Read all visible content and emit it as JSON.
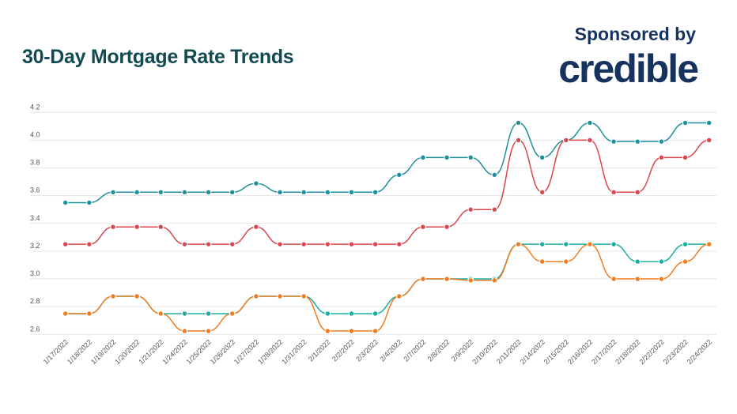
{
  "header": {
    "title": "30-Day Mortgage Rate Trends",
    "sponsor_label": "Sponsored by",
    "logo_text": "credible"
  },
  "chart_data": {
    "type": "line",
    "title": "30-Day Mortgage Rate Trends",
    "xlabel": "",
    "ylabel": "",
    "ylim": [
      2.6,
      4.2
    ],
    "yticks": [
      "2.6",
      "2.8",
      "3.0",
      "3.2",
      "3.4",
      "3.6",
      "3.8",
      "4.0",
      "4.2"
    ],
    "grid": true,
    "categories": [
      "1/17/2022",
      "1/18/2022",
      "1/19/2022",
      "1/20/2022",
      "1/21/2022",
      "1/24/2022",
      "1/25/2022",
      "1/26/2022",
      "1/27/2022",
      "1/28/2022",
      "1/31/2022",
      "2/1/2022",
      "2/2/2022",
      "2/3/2022",
      "2/4/2022",
      "2/7/2022",
      "2/8/2022",
      "2/9/2022",
      "2/10/2022",
      "2/11/2022",
      "2/14/2022",
      "2/15/2022",
      "2/16/2022",
      "2/17/2022",
      "2/18/2022",
      "2/22/2022",
      "2/23/2022",
      "2/24/2022"
    ],
    "series": [
      {
        "color": "#1f8f9c",
        "values": [
          3.55,
          3.55,
          3.625,
          3.625,
          3.625,
          3.625,
          3.625,
          3.625,
          3.688,
          3.625,
          3.625,
          3.625,
          3.625,
          3.625,
          3.75,
          3.875,
          3.875,
          3.875,
          3.75,
          4.125,
          3.875,
          4.0,
          4.125,
          3.99,
          3.99,
          3.99,
          4.125,
          4.125
        ]
      },
      {
        "color": "#d9464e",
        "values": [
          3.25,
          3.25,
          3.375,
          3.375,
          3.375,
          3.25,
          3.25,
          3.25,
          3.375,
          3.25,
          3.25,
          3.25,
          3.25,
          3.25,
          3.25,
          3.375,
          3.375,
          3.5,
          3.5,
          4.0,
          3.625,
          4.0,
          4.0,
          3.625,
          3.625,
          3.875,
          3.875,
          4.0
        ]
      },
      {
        "color": "#1aae9f",
        "values": [
          2.75,
          2.75,
          2.875,
          2.875,
          2.75,
          2.75,
          2.75,
          2.75,
          2.875,
          2.875,
          2.875,
          2.75,
          2.75,
          2.75,
          2.875,
          3.0,
          3.0,
          3.0,
          3.0,
          3.25,
          3.25,
          3.25,
          3.25,
          3.25,
          3.125,
          3.125,
          3.25,
          3.25
        ]
      },
      {
        "color": "#f07c22",
        "values": [
          2.75,
          2.75,
          2.875,
          2.875,
          2.75,
          2.625,
          2.625,
          2.75,
          2.875,
          2.875,
          2.875,
          2.625,
          2.625,
          2.625,
          2.875,
          3.0,
          3.0,
          2.99,
          2.99,
          3.25,
          3.125,
          3.125,
          3.25,
          3.0,
          3.0,
          3.0,
          3.125,
          3.25
        ]
      }
    ]
  }
}
